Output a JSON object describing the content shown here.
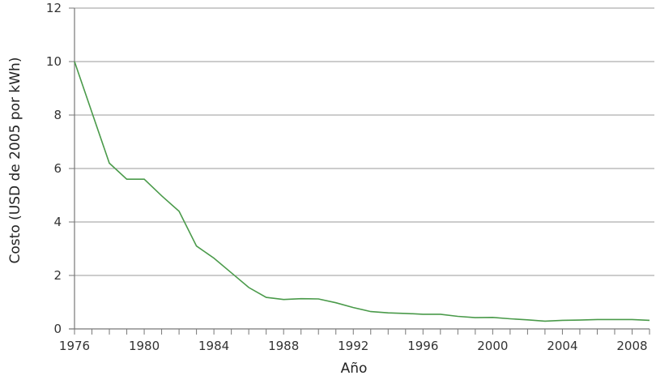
{
  "chart_data": {
    "type": "line",
    "title": "",
    "xlabel": "Año",
    "ylabel": "Costo (USD de 2005 por kWh)",
    "xlim": [
      1976,
      2009
    ],
    "ylim": [
      0,
      12
    ],
    "x_ticks": [
      1976,
      1980,
      1984,
      1988,
      1992,
      1996,
      2000,
      2004,
      2008
    ],
    "y_ticks": [
      0,
      2,
      4,
      6,
      8,
      10,
      12
    ],
    "grid": "horizontal",
    "legend": null,
    "line_color": "#4a9a4a",
    "x": [
      1976,
      1977,
      1978,
      1979,
      1980,
      1981,
      1982,
      1983,
      1984,
      1985,
      1986,
      1987,
      1988,
      1989,
      1990,
      1991,
      1992,
      1993,
      1994,
      1995,
      1996,
      1997,
      1998,
      1999,
      2000,
      2001,
      2002,
      2003,
      2004,
      2005,
      2006,
      2007,
      2008,
      2009
    ],
    "series": [
      {
        "name": "Costo",
        "values": [
          10.0,
          8.1,
          6.2,
          5.6,
          5.6,
          4.98,
          4.4,
          3.1,
          2.65,
          2.1,
          1.55,
          1.18,
          1.1,
          1.13,
          1.12,
          0.98,
          0.8,
          0.65,
          0.6,
          0.58,
          0.55,
          0.55,
          0.47,
          0.42,
          0.43,
          0.38,
          0.34,
          0.29,
          0.32,
          0.33,
          0.35,
          0.35,
          0.35,
          0.32
        ]
      }
    ]
  }
}
